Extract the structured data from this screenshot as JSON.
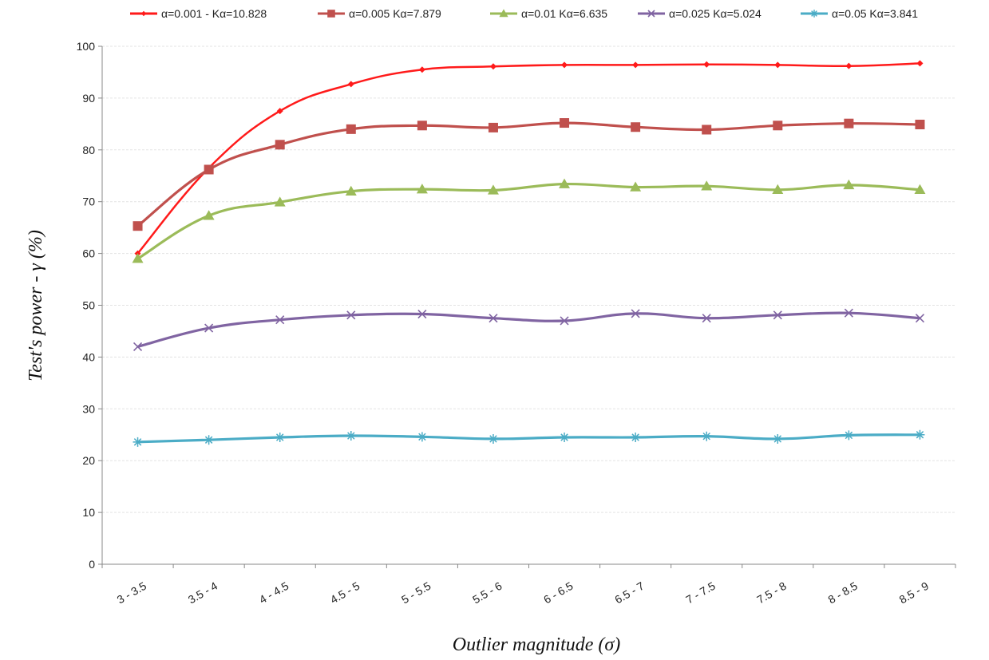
{
  "chart_data": {
    "type": "line",
    "xlabel": "Outlier magnitude (σ)",
    "ylabel": "Test's power - γ (%)",
    "ylim": [
      0,
      100
    ],
    "yticks": [
      0,
      10,
      20,
      30,
      40,
      50,
      60,
      70,
      80,
      90,
      100
    ],
    "grid": true,
    "legend_position": "top",
    "categories": [
      "3 - 3.5",
      "3.5 - 4",
      "4 - 4.5",
      "4.5 - 5",
      "5 - 5.5",
      "5.5 - 6",
      "6 - 6.5",
      "6.5 - 7",
      "7 - 7.5",
      "7.5 - 8",
      "8 - 8.5",
      "8.5 - 9"
    ],
    "series": [
      {
        "name": "α=0.001 - Kα=10.828",
        "color": "#ff1a1a",
        "marker": "diamond",
        "values": [
          60.0,
          76.5,
          87.5,
          92.7,
          95.5,
          96.1,
          96.4,
          96.4,
          96.5,
          96.4,
          96.2,
          96.7
        ]
      },
      {
        "name": "α=0.005 Kα=7.879",
        "color": "#c0504d",
        "marker": "square",
        "values": [
          65.3,
          76.2,
          81.0,
          84.0,
          84.7,
          84.3,
          85.2,
          84.4,
          83.9,
          84.7,
          85.1,
          84.9
        ]
      },
      {
        "name": "α=0.01 Kα=6.635",
        "color": "#9bbb59",
        "marker": "triangle",
        "values": [
          59.0,
          67.3,
          69.9,
          72.0,
          72.4,
          72.2,
          73.4,
          72.8,
          73.0,
          72.3,
          73.2,
          72.3
        ]
      },
      {
        "name": "α=0.025 Kα=5.024",
        "color": "#8064a2",
        "marker": "x",
        "values": [
          42.0,
          45.6,
          47.2,
          48.1,
          48.3,
          47.5,
          47.0,
          48.4,
          47.5,
          48.1,
          48.5,
          47.5
        ]
      },
      {
        "name": "α=0.05 Kα=3.841",
        "color": "#4bacc6",
        "marker": "star",
        "values": [
          23.6,
          24.0,
          24.5,
          24.8,
          24.6,
          24.2,
          24.5,
          24.5,
          24.7,
          24.2,
          24.9,
          25.0
        ]
      }
    ]
  }
}
